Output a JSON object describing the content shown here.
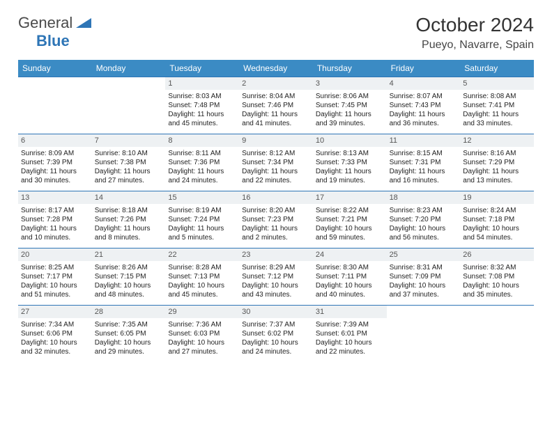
{
  "logo": {
    "word1": "General",
    "word2": "Blue"
  },
  "header": {
    "month": "October 2024",
    "location": "Pueyo, Navarre, Spain"
  },
  "dayNames": [
    "Sunday",
    "Monday",
    "Tuesday",
    "Wednesday",
    "Thursday",
    "Friday",
    "Saturday"
  ],
  "colors": {
    "headerBar": "#3b8bc4",
    "cellBorder": "#2e75b6",
    "dayNumBg": "#eef1f3",
    "logoBlue": "#2e75b6",
    "text": "#333333",
    "bg": "#ffffff"
  },
  "layout": {
    "firstDayOffset": 2,
    "daysInMonth": 31
  },
  "days": [
    {
      "n": 1,
      "sr": "8:03 AM",
      "ss": "7:48 PM",
      "dl": "11 hours and 45 minutes."
    },
    {
      "n": 2,
      "sr": "8:04 AM",
      "ss": "7:46 PM",
      "dl": "11 hours and 41 minutes."
    },
    {
      "n": 3,
      "sr": "8:06 AM",
      "ss": "7:45 PM",
      "dl": "11 hours and 39 minutes."
    },
    {
      "n": 4,
      "sr": "8:07 AM",
      "ss": "7:43 PM",
      "dl": "11 hours and 36 minutes."
    },
    {
      "n": 5,
      "sr": "8:08 AM",
      "ss": "7:41 PM",
      "dl": "11 hours and 33 minutes."
    },
    {
      "n": 6,
      "sr": "8:09 AM",
      "ss": "7:39 PM",
      "dl": "11 hours and 30 minutes."
    },
    {
      "n": 7,
      "sr": "8:10 AM",
      "ss": "7:38 PM",
      "dl": "11 hours and 27 minutes."
    },
    {
      "n": 8,
      "sr": "8:11 AM",
      "ss": "7:36 PM",
      "dl": "11 hours and 24 minutes."
    },
    {
      "n": 9,
      "sr": "8:12 AM",
      "ss": "7:34 PM",
      "dl": "11 hours and 22 minutes."
    },
    {
      "n": 10,
      "sr": "8:13 AM",
      "ss": "7:33 PM",
      "dl": "11 hours and 19 minutes."
    },
    {
      "n": 11,
      "sr": "8:15 AM",
      "ss": "7:31 PM",
      "dl": "11 hours and 16 minutes."
    },
    {
      "n": 12,
      "sr": "8:16 AM",
      "ss": "7:29 PM",
      "dl": "11 hours and 13 minutes."
    },
    {
      "n": 13,
      "sr": "8:17 AM",
      "ss": "7:28 PM",
      "dl": "11 hours and 10 minutes."
    },
    {
      "n": 14,
      "sr": "8:18 AM",
      "ss": "7:26 PM",
      "dl": "11 hours and 8 minutes."
    },
    {
      "n": 15,
      "sr": "8:19 AM",
      "ss": "7:24 PM",
      "dl": "11 hours and 5 minutes."
    },
    {
      "n": 16,
      "sr": "8:20 AM",
      "ss": "7:23 PM",
      "dl": "11 hours and 2 minutes."
    },
    {
      "n": 17,
      "sr": "8:22 AM",
      "ss": "7:21 PM",
      "dl": "10 hours and 59 minutes."
    },
    {
      "n": 18,
      "sr": "8:23 AM",
      "ss": "7:20 PM",
      "dl": "10 hours and 56 minutes."
    },
    {
      "n": 19,
      "sr": "8:24 AM",
      "ss": "7:18 PM",
      "dl": "10 hours and 54 minutes."
    },
    {
      "n": 20,
      "sr": "8:25 AM",
      "ss": "7:17 PM",
      "dl": "10 hours and 51 minutes."
    },
    {
      "n": 21,
      "sr": "8:26 AM",
      "ss": "7:15 PM",
      "dl": "10 hours and 48 minutes."
    },
    {
      "n": 22,
      "sr": "8:28 AM",
      "ss": "7:13 PM",
      "dl": "10 hours and 45 minutes."
    },
    {
      "n": 23,
      "sr": "8:29 AM",
      "ss": "7:12 PM",
      "dl": "10 hours and 43 minutes."
    },
    {
      "n": 24,
      "sr": "8:30 AM",
      "ss": "7:11 PM",
      "dl": "10 hours and 40 minutes."
    },
    {
      "n": 25,
      "sr": "8:31 AM",
      "ss": "7:09 PM",
      "dl": "10 hours and 37 minutes."
    },
    {
      "n": 26,
      "sr": "8:32 AM",
      "ss": "7:08 PM",
      "dl": "10 hours and 35 minutes."
    },
    {
      "n": 27,
      "sr": "7:34 AM",
      "ss": "6:06 PM",
      "dl": "10 hours and 32 minutes."
    },
    {
      "n": 28,
      "sr": "7:35 AM",
      "ss": "6:05 PM",
      "dl": "10 hours and 29 minutes."
    },
    {
      "n": 29,
      "sr": "7:36 AM",
      "ss": "6:03 PM",
      "dl": "10 hours and 27 minutes."
    },
    {
      "n": 30,
      "sr": "7:37 AM",
      "ss": "6:02 PM",
      "dl": "10 hours and 24 minutes."
    },
    {
      "n": 31,
      "sr": "7:39 AM",
      "ss": "6:01 PM",
      "dl": "10 hours and 22 minutes."
    }
  ],
  "labels": {
    "sunrise": "Sunrise: ",
    "sunset": "Sunset: ",
    "daylight": "Daylight: "
  }
}
